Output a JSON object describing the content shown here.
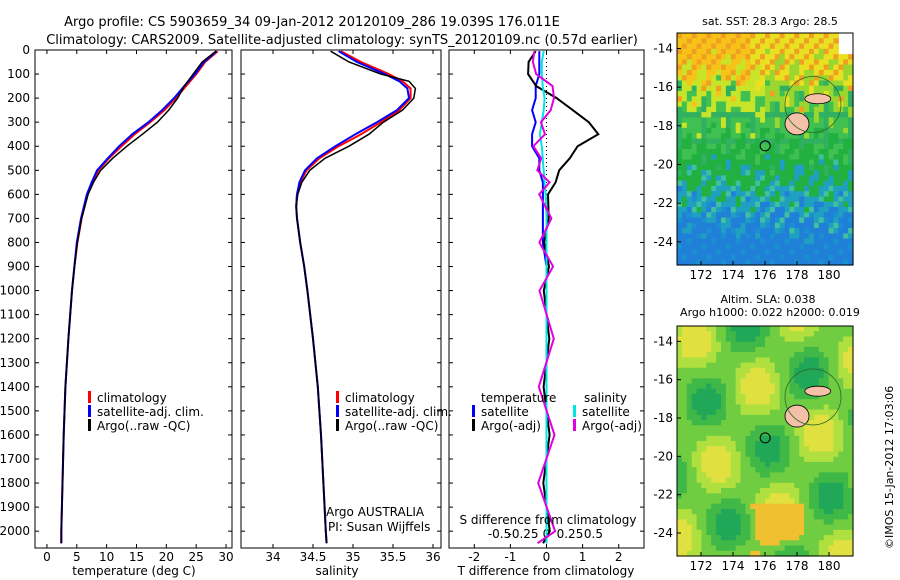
{
  "header": {
    "line1": "Argo profile: CS 5903659_34 09-Jan-2012 20120109_286 19.039S 176.011E",
    "line2": "Climatology: CARS2009. Satellite-adjusted climatology: synTS_20120109.nc (0.57d earlier)"
  },
  "colors": {
    "climatology": "#ff0000",
    "satellite": "#0000ff",
    "argo": "#000000",
    "s_satellite": "#00e5e5",
    "s_argo": "#e000e0"
  },
  "chart_data": [
    {
      "type": "line",
      "name": "temperature-profile",
      "xlabel": "temperature (deg C)",
      "ylabel": "",
      "xlim": [
        -2,
        31
      ],
      "ylim": [
        2070,
        0
      ],
      "xticks": [
        "0",
        "5",
        "10",
        "15",
        "20",
        "25",
        "30"
      ],
      "xtick_values": [
        0,
        5,
        10,
        15,
        20,
        25,
        30
      ],
      "yticks": [
        "0",
        "100",
        "200",
        "300",
        "400",
        "500",
        "600",
        "700",
        "800",
        "900",
        "1000",
        "1100",
        "1200",
        "1300",
        "1400",
        "1500",
        "1600",
        "1700",
        "1800",
        "1900",
        "2000"
      ],
      "ytick_values": [
        0,
        100,
        200,
        300,
        400,
        500,
        600,
        700,
        800,
        900,
        1000,
        1100,
        1200,
        1300,
        1400,
        1500,
        1600,
        1700,
        1800,
        1900,
        2000
      ],
      "depth": [
        5,
        50,
        100,
        150,
        200,
        250,
        300,
        350,
        400,
        450,
        500,
        550,
        600,
        700,
        800,
        900,
        1000,
        1200,
        1400,
        1600,
        1800,
        2000,
        2050
      ],
      "series": [
        {
          "name": "climatology",
          "color_key": "climatology",
          "values": [
            28.6,
            26.5,
            25.0,
            23.3,
            21.6,
            19.7,
            17.3,
            14.7,
            12.5,
            10.4,
            8.6,
            7.6,
            6.8,
            5.8,
            5.1,
            4.6,
            4.2,
            3.6,
            3.1,
            2.8,
            2.6,
            2.4,
            2.4
          ]
        },
        {
          "name": "satellite-adj. clim.",
          "color_key": "satellite",
          "values": [
            28.4,
            26.3,
            24.8,
            23.0,
            21.3,
            19.3,
            17.0,
            14.3,
            12.1,
            10.2,
            8.4,
            7.5,
            6.7,
            5.7,
            5.0,
            4.6,
            4.2,
            3.6,
            3.1,
            2.8,
            2.6,
            2.4,
            2.4
          ]
        },
        {
          "name": "Argo(..raw -QC)",
          "color_key": "argo",
          "values": [
            28.3,
            26.0,
            24.5,
            23.0,
            21.9,
            20.4,
            18.5,
            16.0,
            13.4,
            11.0,
            9.0,
            7.8,
            6.9,
            5.8,
            5.1,
            4.6,
            4.2,
            3.6,
            3.1,
            2.8,
            2.6,
            2.4,
            2.4
          ]
        }
      ],
      "legend": [
        "climatology",
        "satellite-adj. clim.",
        "Argo(..raw -QC)"
      ],
      "legend_position": "lower-center"
    },
    {
      "type": "line",
      "name": "salinity-profile",
      "xlabel": "salinity",
      "xlim": [
        33.6,
        36.1
      ],
      "ylim": [
        2070,
        0
      ],
      "xticks": [
        "34",
        "34.5",
        "35",
        "35.5",
        "36"
      ],
      "xtick_values": [
        34,
        34.5,
        35,
        35.5,
        36
      ],
      "depth": [
        5,
        50,
        100,
        130,
        160,
        200,
        250,
        300,
        350,
        400,
        450,
        500,
        550,
        600,
        650,
        700,
        800,
        900,
        1000,
        1200,
        1400,
        1600,
        1800,
        2000,
        2050
      ],
      "series": [
        {
          "name": "climatology",
          "color_key": "climatology",
          "values": [
            34.85,
            35.1,
            35.45,
            35.62,
            35.72,
            35.72,
            35.58,
            35.35,
            35.1,
            34.82,
            34.58,
            34.42,
            34.34,
            34.3,
            34.29,
            34.3,
            34.34,
            34.39,
            34.43,
            34.5,
            34.56,
            34.6,
            34.63,
            34.66,
            34.67
          ]
        },
        {
          "name": "satellite-adj. clim.",
          "color_key": "satellite",
          "values": [
            34.82,
            35.05,
            35.4,
            35.58,
            35.68,
            35.7,
            35.55,
            35.3,
            35.03,
            34.78,
            34.55,
            34.4,
            34.33,
            34.3,
            34.29,
            34.3,
            34.34,
            34.39,
            34.43,
            34.5,
            34.56,
            34.6,
            34.63,
            34.66,
            34.67
          ]
        },
        {
          "name": "Argo(..raw -QC)",
          "color_key": "argo",
          "values": [
            34.72,
            34.95,
            35.35,
            35.7,
            35.78,
            35.76,
            35.62,
            35.38,
            35.2,
            34.95,
            34.65,
            34.46,
            34.36,
            34.31,
            34.29,
            34.3,
            34.34,
            34.39,
            34.43,
            34.5,
            34.56,
            34.6,
            34.63,
            34.66,
            34.67
          ]
        }
      ],
      "legend": [
        "climatology",
        "satellite-adj. clim.",
        "Argo(..raw -QC)"
      ],
      "annotation": [
        "Argo AUSTRALIA",
        "PI: Susan Wijffels"
      ]
    },
    {
      "type": "line",
      "name": "difference-profile",
      "xlabel": "T difference from climatology",
      "s_xlabel": "S difference from climatology",
      "xlim": [
        -2.7,
        2.7
      ],
      "ylim": [
        2070,
        0
      ],
      "xticks": [
        "-2",
        "-1",
        "0",
        "1",
        "2"
      ],
      "xtick_values": [
        -2,
        -1,
        0,
        1,
        2
      ],
      "s_xticks": [
        "-0.5",
        "-0.25",
        "0",
        "0.25",
        "0.5"
      ],
      "s_xtick_values": [
        -0.5,
        -0.25,
        0,
        0.25,
        0.5
      ],
      "legend_titles": [
        "temperature",
        "salinity"
      ],
      "depth": [
        5,
        50,
        100,
        150,
        200,
        250,
        300,
        350,
        400,
        450,
        500,
        550,
        600,
        700,
        800,
        900,
        1000,
        1200,
        1400,
        1600,
        1800,
        2000,
        2050
      ],
      "series": [
        {
          "name": "satellite",
          "group": "temperature",
          "color_key": "satellite",
          "values": [
            -0.2,
            -0.2,
            -0.2,
            -0.3,
            -0.3,
            -0.4,
            -0.3,
            -0.4,
            -0.4,
            -0.2,
            -0.2,
            -0.1,
            -0.1,
            -0.1,
            -0.1,
            0,
            0,
            0,
            0,
            0,
            0,
            0,
            0
          ]
        },
        {
          "name": "Argo(-adj)",
          "group": "temperature",
          "color_key": "argo",
          "values": [
            -0.3,
            -0.5,
            -0.5,
            -0.3,
            0.3,
            0.7,
            1.2,
            1.4,
            0.9,
            0.6,
            0.4,
            0.2,
            0.1,
            0.0,
            0.0,
            0.0,
            0.0,
            0.0,
            0.0,
            0.0,
            0.0,
            0.0,
            0.0
          ]
        },
        {
          "name": "satellite",
          "group": "salinity",
          "color_key": "s_satellite",
          "values": [
            -0.03,
            -0.05,
            -0.05,
            -0.04,
            -0.02,
            -0.03,
            -0.05,
            -0.07,
            -0.05,
            -0.04,
            -0.03,
            -0.02,
            -0.01,
            0,
            0,
            0,
            0,
            0,
            0,
            0,
            0,
            0,
            0
          ]
        },
        {
          "name": "Argo(-adj)",
          "group": "salinity",
          "color_key": "s_argo",
          "values": [
            -0.13,
            -0.15,
            -0.1,
            0.05,
            0.1,
            0.02,
            -0.03,
            -0.05,
            -0.1,
            -0.1,
            -0.05,
            -0.02,
            -0.02,
            -0.01,
            -0.01,
            0,
            0,
            0,
            0,
            0,
            0,
            0,
            0
          ]
        }
      ]
    }
  ],
  "maps": {
    "sst": {
      "title": "sat. SST: 28.3 Argo: 28.5",
      "xticks": [
        "172",
        "174",
        "176",
        "178",
        "180"
      ],
      "xtick_values": [
        172,
        174,
        176,
        178,
        180
      ],
      "yticks": [
        "-14",
        "-16",
        "-18",
        "-20",
        "-22",
        "-24"
      ],
      "ytick_values": [
        -14,
        -16,
        -18,
        -20,
        -22,
        -24
      ],
      "xlim": [
        170.5,
        181.5
      ],
      "ylim": [
        -25.2,
        -13.2
      ],
      "float_lon": 176.011,
      "float_lat": -19.039
    },
    "sla": {
      "title_line1": "Altim. SLA: 0.038",
      "title_line2": "Argo h1000: 0.022 h2000: 0.019",
      "xticks": [
        "172",
        "174",
        "176",
        "178",
        "180"
      ],
      "xtick_values": [
        172,
        174,
        176,
        178,
        180
      ],
      "yticks": [
        "-14",
        "-16",
        "-18",
        "-20",
        "-22",
        "-24"
      ],
      "ytick_values": [
        -14,
        -16,
        -18,
        -20,
        -22,
        -24
      ],
      "xlim": [
        170.5,
        181.5
      ],
      "ylim": [
        -25.2,
        -13.2
      ],
      "float_lon": 176.011,
      "float_lat": -19.039
    }
  },
  "credit": "©IMOS 15-Jan-2012 17:03:06"
}
